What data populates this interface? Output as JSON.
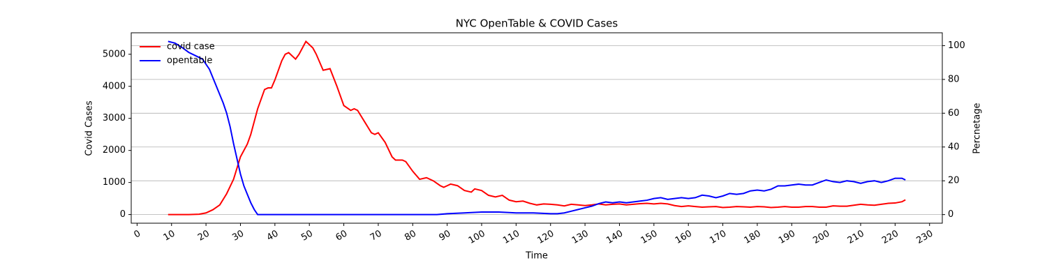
{
  "chart_data": {
    "type": "line",
    "title": "NYC OpenTable & COVID Cases",
    "x_label": "Time",
    "y_label": "Covid Cases",
    "y2_label": "Percnetage",
    "legend": "upper left",
    "grid": "y2",
    "xlim": [
      -1.7,
      233.7
    ],
    "xticks": [
      0,
      10,
      20,
      30,
      40,
      50,
      60,
      70,
      80,
      90,
      100,
      110,
      120,
      130,
      140,
      150,
      160,
      170,
      180,
      190,
      200,
      210,
      220,
      230
    ],
    "ylim": [
      -270,
      5670
    ],
    "yticks": [
      0,
      1000,
      2000,
      3000,
      4000,
      5000
    ],
    "y2lim": [
      -5.1,
      107.6
    ],
    "y2ticks": [
      0,
      20,
      40,
      60,
      80,
      100
    ],
    "series": [
      {
        "name": "covid case",
        "color": "#ff0000",
        "x": [
          9,
          15,
          18,
          20,
          22,
          24,
          26,
          28,
          30,
          32,
          33,
          35,
          37,
          38,
          39,
          40,
          42,
          43,
          44,
          46,
          47,
          48,
          49,
          51,
          52,
          54,
          56,
          58,
          60,
          62,
          63,
          64,
          66,
          68,
          69,
          70,
          72,
          74,
          75,
          77,
          78,
          80,
          82,
          84,
          86,
          88,
          89,
          90,
          91,
          93,
          95,
          97,
          98,
          100,
          102,
          104,
          106,
          108,
          110,
          112,
          114,
          116,
          118,
          120,
          122,
          124,
          126,
          128,
          130,
          132,
          134,
          136,
          138,
          140,
          142,
          144,
          146,
          148,
          150,
          152,
          154,
          156,
          158,
          160,
          162,
          164,
          166,
          168,
          170,
          172,
          174,
          176,
          178,
          180,
          182,
          184,
          186,
          188,
          190,
          192,
          194,
          196,
          198,
          200,
          202,
          204,
          206,
          208,
          210,
          212,
          214,
          216,
          218,
          220,
          222,
          223
        ],
        "values": [
          0,
          0,
          10,
          50,
          150,
          300,
          650,
          1100,
          1800,
          2200,
          2500,
          3300,
          3900,
          3950,
          3950,
          4200,
          4800,
          5000,
          5050,
          4850,
          5000,
          5200,
          5400,
          5200,
          5000,
          4500,
          4550,
          4000,
          3400,
          3250,
          3300,
          3250,
          2900,
          2550,
          2500,
          2550,
          2250,
          1800,
          1700,
          1700,
          1650,
          1350,
          1100,
          1150,
          1050,
          900,
          850,
          900,
          950,
          900,
          750,
          700,
          800,
          750,
          600,
          550,
          600,
          450,
          400,
          420,
          350,
          300,
          330,
          320,
          300,
          270,
          320,
          300,
          280,
          300,
          330,
          300,
          320,
          330,
          300,
          320,
          340,
          350,
          330,
          350,
          330,
          280,
          250,
          270,
          250,
          230,
          240,
          250,
          220,
          230,
          250,
          240,
          230,
          250,
          240,
          220,
          230,
          250,
          230,
          230,
          250,
          250,
          230,
          230,
          270,
          260,
          260,
          290,
          320,
          300,
          290,
          320,
          350,
          360,
          400,
          460
        ]
      },
      {
        "name": "opentable",
        "color": "#0000ff",
        "axis": "y2",
        "x": [
          9,
          11,
          13,
          15,
          17,
          19,
          21,
          23,
          25,
          26,
          27,
          28,
          29,
          30,
          31,
          32,
          33,
          34,
          35,
          87,
          90,
          95,
          100,
          105,
          110,
          115,
          120,
          122,
          124,
          126,
          128,
          130,
          132,
          134,
          136,
          138,
          140,
          142,
          144,
          146,
          148,
          150,
          152,
          154,
          156,
          158,
          160,
          162,
          164,
          166,
          168,
          170,
          172,
          174,
          176,
          178,
          180,
          182,
          184,
          186,
          188,
          190,
          192,
          194,
          196,
          198,
          200,
          202,
          204,
          206,
          208,
          210,
          212,
          214,
          216,
          218,
          220,
          222,
          223
        ],
        "values": [
          102.5,
          101.5,
          99,
          96,
          94,
          92,
          86,
          76,
          66,
          60,
          52,
          42,
          33,
          24,
          17,
          12,
          7,
          3,
          0,
          0,
          0.5,
          1,
          1.5,
          1.5,
          1,
          1,
          0.5,
          0.5,
          1,
          2,
          3,
          4,
          5,
          6.5,
          7.5,
          7,
          7.5,
          7,
          7.5,
          8,
          8.5,
          9.5,
          10,
          9,
          9.5,
          10,
          9.5,
          10,
          11.5,
          11,
          10,
          11,
          12.5,
          12,
          12.5,
          14,
          14.5,
          14,
          15,
          17,
          17,
          17.5,
          18,
          17.5,
          17.5,
          19,
          20.5,
          19.5,
          19,
          20,
          19.5,
          18.5,
          19.5,
          20,
          19,
          20,
          21.5,
          21.5,
          20.5
        ]
      }
    ]
  }
}
